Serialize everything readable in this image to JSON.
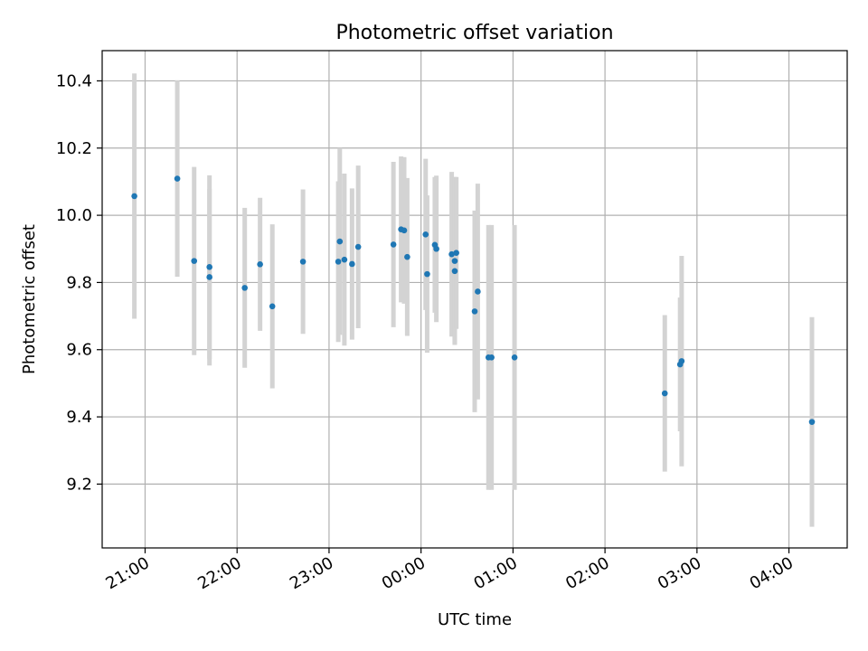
{
  "chart_data": {
    "type": "scatter",
    "title": "Photometric offset variation",
    "xlabel": "UTC time",
    "ylabel": "Photometric offset",
    "grid": true,
    "legend": "none",
    "x_range": [
      "20:32",
      "04:38"
    ],
    "ylim": [
      9.01,
      10.49
    ],
    "x_ticks": [
      "21:00",
      "22:00",
      "23:00",
      "00:00",
      "01:00",
      "02:00",
      "03:00",
      "04:00"
    ],
    "y_ticks": [
      "9.2",
      "9.4",
      "9.6",
      "9.8",
      "10.0",
      "10.2",
      "10.4"
    ],
    "colors": {
      "point": "#1f77b4",
      "errorbar": "#d3d3d3",
      "grid": "#b0b0b0"
    },
    "points": [
      {
        "x": "20:53",
        "y": 10.057,
        "yerr": 0.365
      },
      {
        "x": "21:21",
        "y": 10.109,
        "yerr": 0.292
      },
      {
        "x": "21:32",
        "y": 9.864,
        "yerr": 0.28
      },
      {
        "x": "21:42",
        "y": 9.846,
        "yerr": 0.273
      },
      {
        "x": "21:42",
        "y": 9.816,
        "yerr": 0.263
      },
      {
        "x": "22:05",
        "y": 9.784,
        "yerr": 0.238
      },
      {
        "x": "22:15",
        "y": 9.854,
        "yerr": 0.198
      },
      {
        "x": "22:23",
        "y": 9.729,
        "yerr": 0.244
      },
      {
        "x": "22:43",
        "y": 9.862,
        "yerr": 0.215
      },
      {
        "x": "23:06",
        "y": 9.862,
        "yerr": 0.239
      },
      {
        "x": "23:07",
        "y": 9.922,
        "yerr": 0.278
      },
      {
        "x": "23:10",
        "y": 9.868,
        "yerr": 0.256
      },
      {
        "x": "23:15",
        "y": 9.855,
        "yerr": 0.225
      },
      {
        "x": "23:19",
        "y": 9.906,
        "yerr": 0.242
      },
      {
        "x": "23:42",
        "y": 9.913,
        "yerr": 0.246
      },
      {
        "x": "23:47",
        "y": 9.958,
        "yerr": 0.217
      },
      {
        "x": "23:49",
        "y": 9.955,
        "yerr": 0.218
      },
      {
        "x": "23:51",
        "y": 9.876,
        "yerr": 0.235
      },
      {
        "x": "00:03",
        "y": 9.943,
        "yerr": 0.225
      },
      {
        "x": "00:04",
        "y": 9.825,
        "yerr": 0.234
      },
      {
        "x": "00:09",
        "y": 9.912,
        "yerr": 0.202
      },
      {
        "x": "00:10",
        "y": 9.9,
        "yerr": 0.218
      },
      {
        "x": "00:20",
        "y": 9.884,
        "yerr": 0.245
      },
      {
        "x": "00:22",
        "y": 9.834,
        "yerr": 0.218
      },
      {
        "x": "00:22",
        "y": 9.864,
        "yerr": 0.25
      },
      {
        "x": "00:23",
        "y": 9.888,
        "yerr": 0.226
      },
      {
        "x": "00:35",
        "y": 9.714,
        "yerr": 0.3
      },
      {
        "x": "00:37",
        "y": 9.773,
        "yerr": 0.321
      },
      {
        "x": "00:44",
        "y": 9.577,
        "yerr": 0.394
      },
      {
        "x": "00:46",
        "y": 9.577,
        "yerr": 0.394
      },
      {
        "x": "01:01",
        "y": 9.577,
        "yerr": 0.394
      },
      {
        "x": "02:39",
        "y": 9.47,
        "yerr": 0.233
      },
      {
        "x": "02:49",
        "y": 9.556,
        "yerr": 0.199
      },
      {
        "x": "02:50",
        "y": 9.566,
        "yerr": 0.313
      },
      {
        "x": "04:15",
        "y": 9.385,
        "yerr": 0.312
      }
    ]
  }
}
